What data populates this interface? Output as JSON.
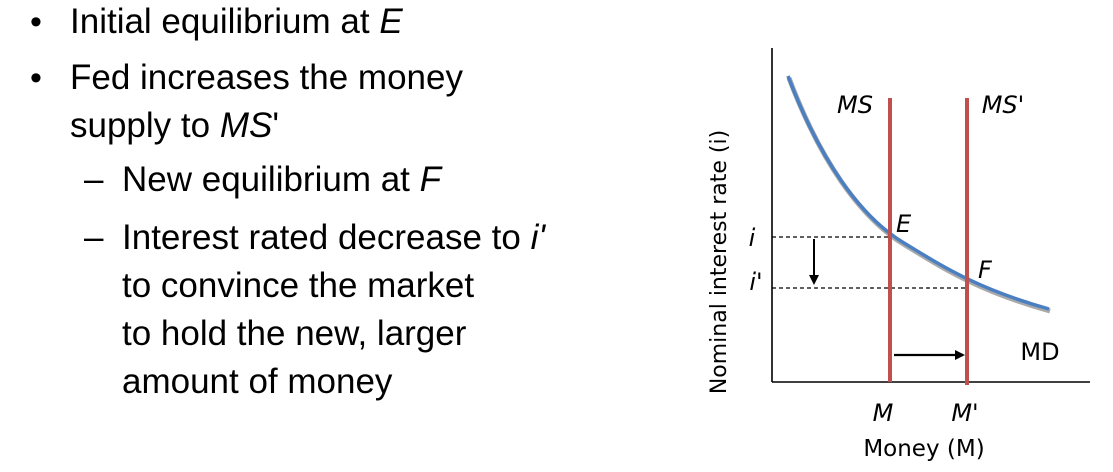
{
  "bullets": {
    "marker": "•",
    "dash": "–",
    "items": [
      {
        "text": "Initial equilibrium at ",
        "em": "E"
      },
      {
        "line1": "Fed increases the money",
        "line2": "supply to ",
        "em": "MS",
        "suffix": "'"
      }
    ],
    "subitems": [
      {
        "text": "New equilibrium at ",
        "em": "F"
      },
      {
        "line1_text": "Interest rated decrease to ",
        "line1_em": "i'",
        "line2": "to convince the market",
        "line3": "to hold the new, larger",
        "line4": "amount of money"
      }
    ]
  },
  "diagram": {
    "y_axis_label": "Nominal interest rate (i)",
    "x_axis_label": "Money (M)",
    "curve_label_md": "MD",
    "supply_label_1": "MS",
    "supply_label_2": "MS'",
    "point_e": "E",
    "point_f": "F",
    "rate_i": "i",
    "rate_i_prime": "i'",
    "money_m": "M",
    "money_m_prime": "M'",
    "colors": {
      "demand_curve": "#4a7fc1",
      "supply_lines": "#c0504d",
      "axes": "#000000"
    }
  }
}
